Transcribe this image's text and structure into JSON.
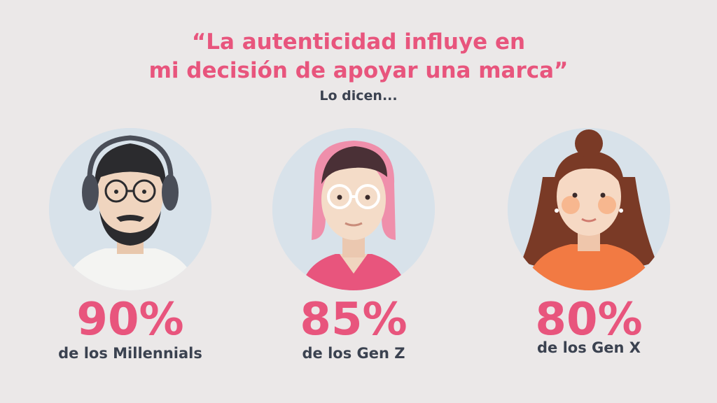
{
  "headline": {
    "line1": "“La autenticidad influye en",
    "line2": "mi decisión de apoyar una marca”"
  },
  "subtitle": "Lo dicen...",
  "stats": [
    {
      "value": "90%",
      "label": "de los Millennials",
      "avatar_icon": "bearded-man-headphones-icon"
    },
    {
      "value": "85%",
      "label": "de los Gen Z",
      "avatar_icon": "pink-haired-person-glasses-icon"
    },
    {
      "value": "80%",
      "label": "de los Gen X",
      "avatar_icon": "curly-haired-woman-icon"
    }
  ],
  "colors": {
    "accent": "#e8557d",
    "text": "#3b4250",
    "background": "#ebe8e8",
    "circle": "#d8e2ea"
  }
}
